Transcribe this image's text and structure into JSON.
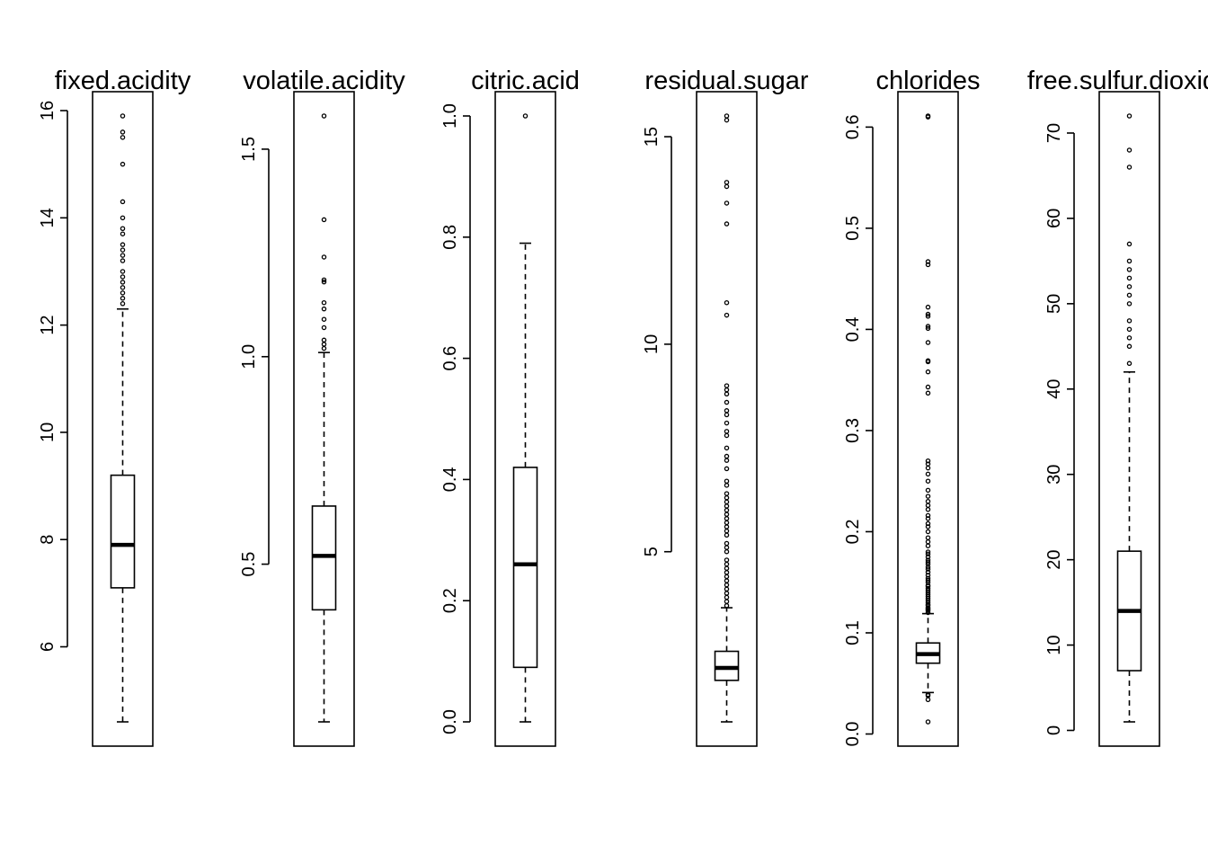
{
  "chart_data": [
    {
      "type": "boxplot",
      "title": "fixed.acidity",
      "ylim": [
        4.6,
        15.9
      ],
      "yticks": [
        6,
        8,
        10,
        12,
        14,
        16
      ],
      "box": {
        "whisker_low": 4.6,
        "q1": 7.1,
        "median": 7.9,
        "q3": 9.2,
        "whisker_high": 12.3
      },
      "outliers": [
        12.4,
        12.5,
        12.6,
        12.7,
        12.8,
        12.9,
        13.0,
        13.2,
        13.3,
        13.4,
        13.5,
        13.7,
        13.8,
        14.0,
        14.3,
        15.0,
        15.5,
        15.6,
        15.9
      ]
    },
    {
      "type": "boxplot",
      "title": "volatile.acidity",
      "ylim": [
        0.12,
        1.58
      ],
      "yticks": [
        0.5,
        1.0,
        1.5
      ],
      "box": {
        "whisker_low": 0.12,
        "q1": 0.39,
        "median": 0.52,
        "q3": 0.64,
        "whisker_high": 1.01
      },
      "outliers": [
        1.02,
        1.03,
        1.04,
        1.07,
        1.09,
        1.115,
        1.13,
        1.18,
        1.185,
        1.24,
        1.33,
        1.58
      ]
    },
    {
      "type": "boxplot",
      "title": "citric.acid",
      "ylim": [
        0.0,
        1.0
      ],
      "yticks": [
        0.0,
        0.2,
        0.4,
        0.6,
        0.8,
        1.0
      ],
      "box": {
        "whisker_low": 0.0,
        "q1": 0.09,
        "median": 0.26,
        "q3": 0.42,
        "whisker_high": 0.79
      },
      "outliers": [
        1.0
      ]
    },
    {
      "type": "boxplot",
      "title": "residual.sugar",
      "ylim": [
        0.9,
        15.5
      ],
      "yticks": [
        5,
        10,
        15
      ],
      "box": {
        "whisker_low": 0.9,
        "q1": 1.9,
        "median": 2.2,
        "q3": 2.6,
        "whisker_high": 3.65
      },
      "outliers": [
        3.7,
        3.8,
        3.9,
        4.0,
        4.1,
        4.2,
        4.3,
        4.4,
        4.5,
        4.6,
        4.7,
        4.8,
        5.0,
        5.1,
        5.2,
        5.4,
        5.5,
        5.6,
        5.7,
        5.8,
        5.9,
        6.0,
        6.1,
        6.2,
        6.3,
        6.4,
        6.6,
        6.7,
        7.0,
        7.2,
        7.3,
        7.5,
        7.8,
        7.9,
        8.1,
        8.3,
        8.4,
        8.6,
        8.8,
        8.9,
        9.0,
        10.7,
        11.0,
        12.9,
        13.4,
        13.8,
        13.9,
        15.4,
        15.5
      ]
    },
    {
      "type": "boxplot",
      "title": "chlorides",
      "ylim": [
        0.012,
        0.611
      ],
      "yticks": [
        0.0,
        0.1,
        0.2,
        0.3,
        0.4,
        0.5,
        0.6
      ],
      "box": {
        "whisker_low": 0.041,
        "q1": 0.07,
        "median": 0.079,
        "q3": 0.09,
        "whisker_high": 0.119
      },
      "outliers": [
        0.012,
        0.034,
        0.038,
        0.039,
        0.12,
        0.122,
        0.123,
        0.124,
        0.125,
        0.127,
        0.128,
        0.13,
        0.132,
        0.134,
        0.136,
        0.138,
        0.14,
        0.142,
        0.144,
        0.146,
        0.147,
        0.15,
        0.152,
        0.154,
        0.157,
        0.16,
        0.163,
        0.165,
        0.168,
        0.17,
        0.172,
        0.175,
        0.178,
        0.18,
        0.186,
        0.19,
        0.194,
        0.2,
        0.205,
        0.208,
        0.213,
        0.216,
        0.222,
        0.226,
        0.23,
        0.235,
        0.241,
        0.25,
        0.257,
        0.263,
        0.267,
        0.27,
        0.337,
        0.343,
        0.358,
        0.368,
        0.369,
        0.387,
        0.401,
        0.403,
        0.413,
        0.415,
        0.422,
        0.464,
        0.467,
        0.61,
        0.611
      ]
    },
    {
      "type": "boxplot",
      "title": "free.sulfur.dioxide",
      "ylim": [
        1,
        72
      ],
      "yticks": [
        0,
        10,
        20,
        30,
        40,
        50,
        60,
        70
      ],
      "box": {
        "whisker_low": 1,
        "q1": 7,
        "median": 14,
        "q3": 21,
        "whisker_high": 42
      },
      "outliers": [
        43,
        45,
        46,
        47,
        48,
        50,
        51,
        52,
        53,
        54,
        55,
        57,
        66,
        68,
        72
      ]
    }
  ]
}
